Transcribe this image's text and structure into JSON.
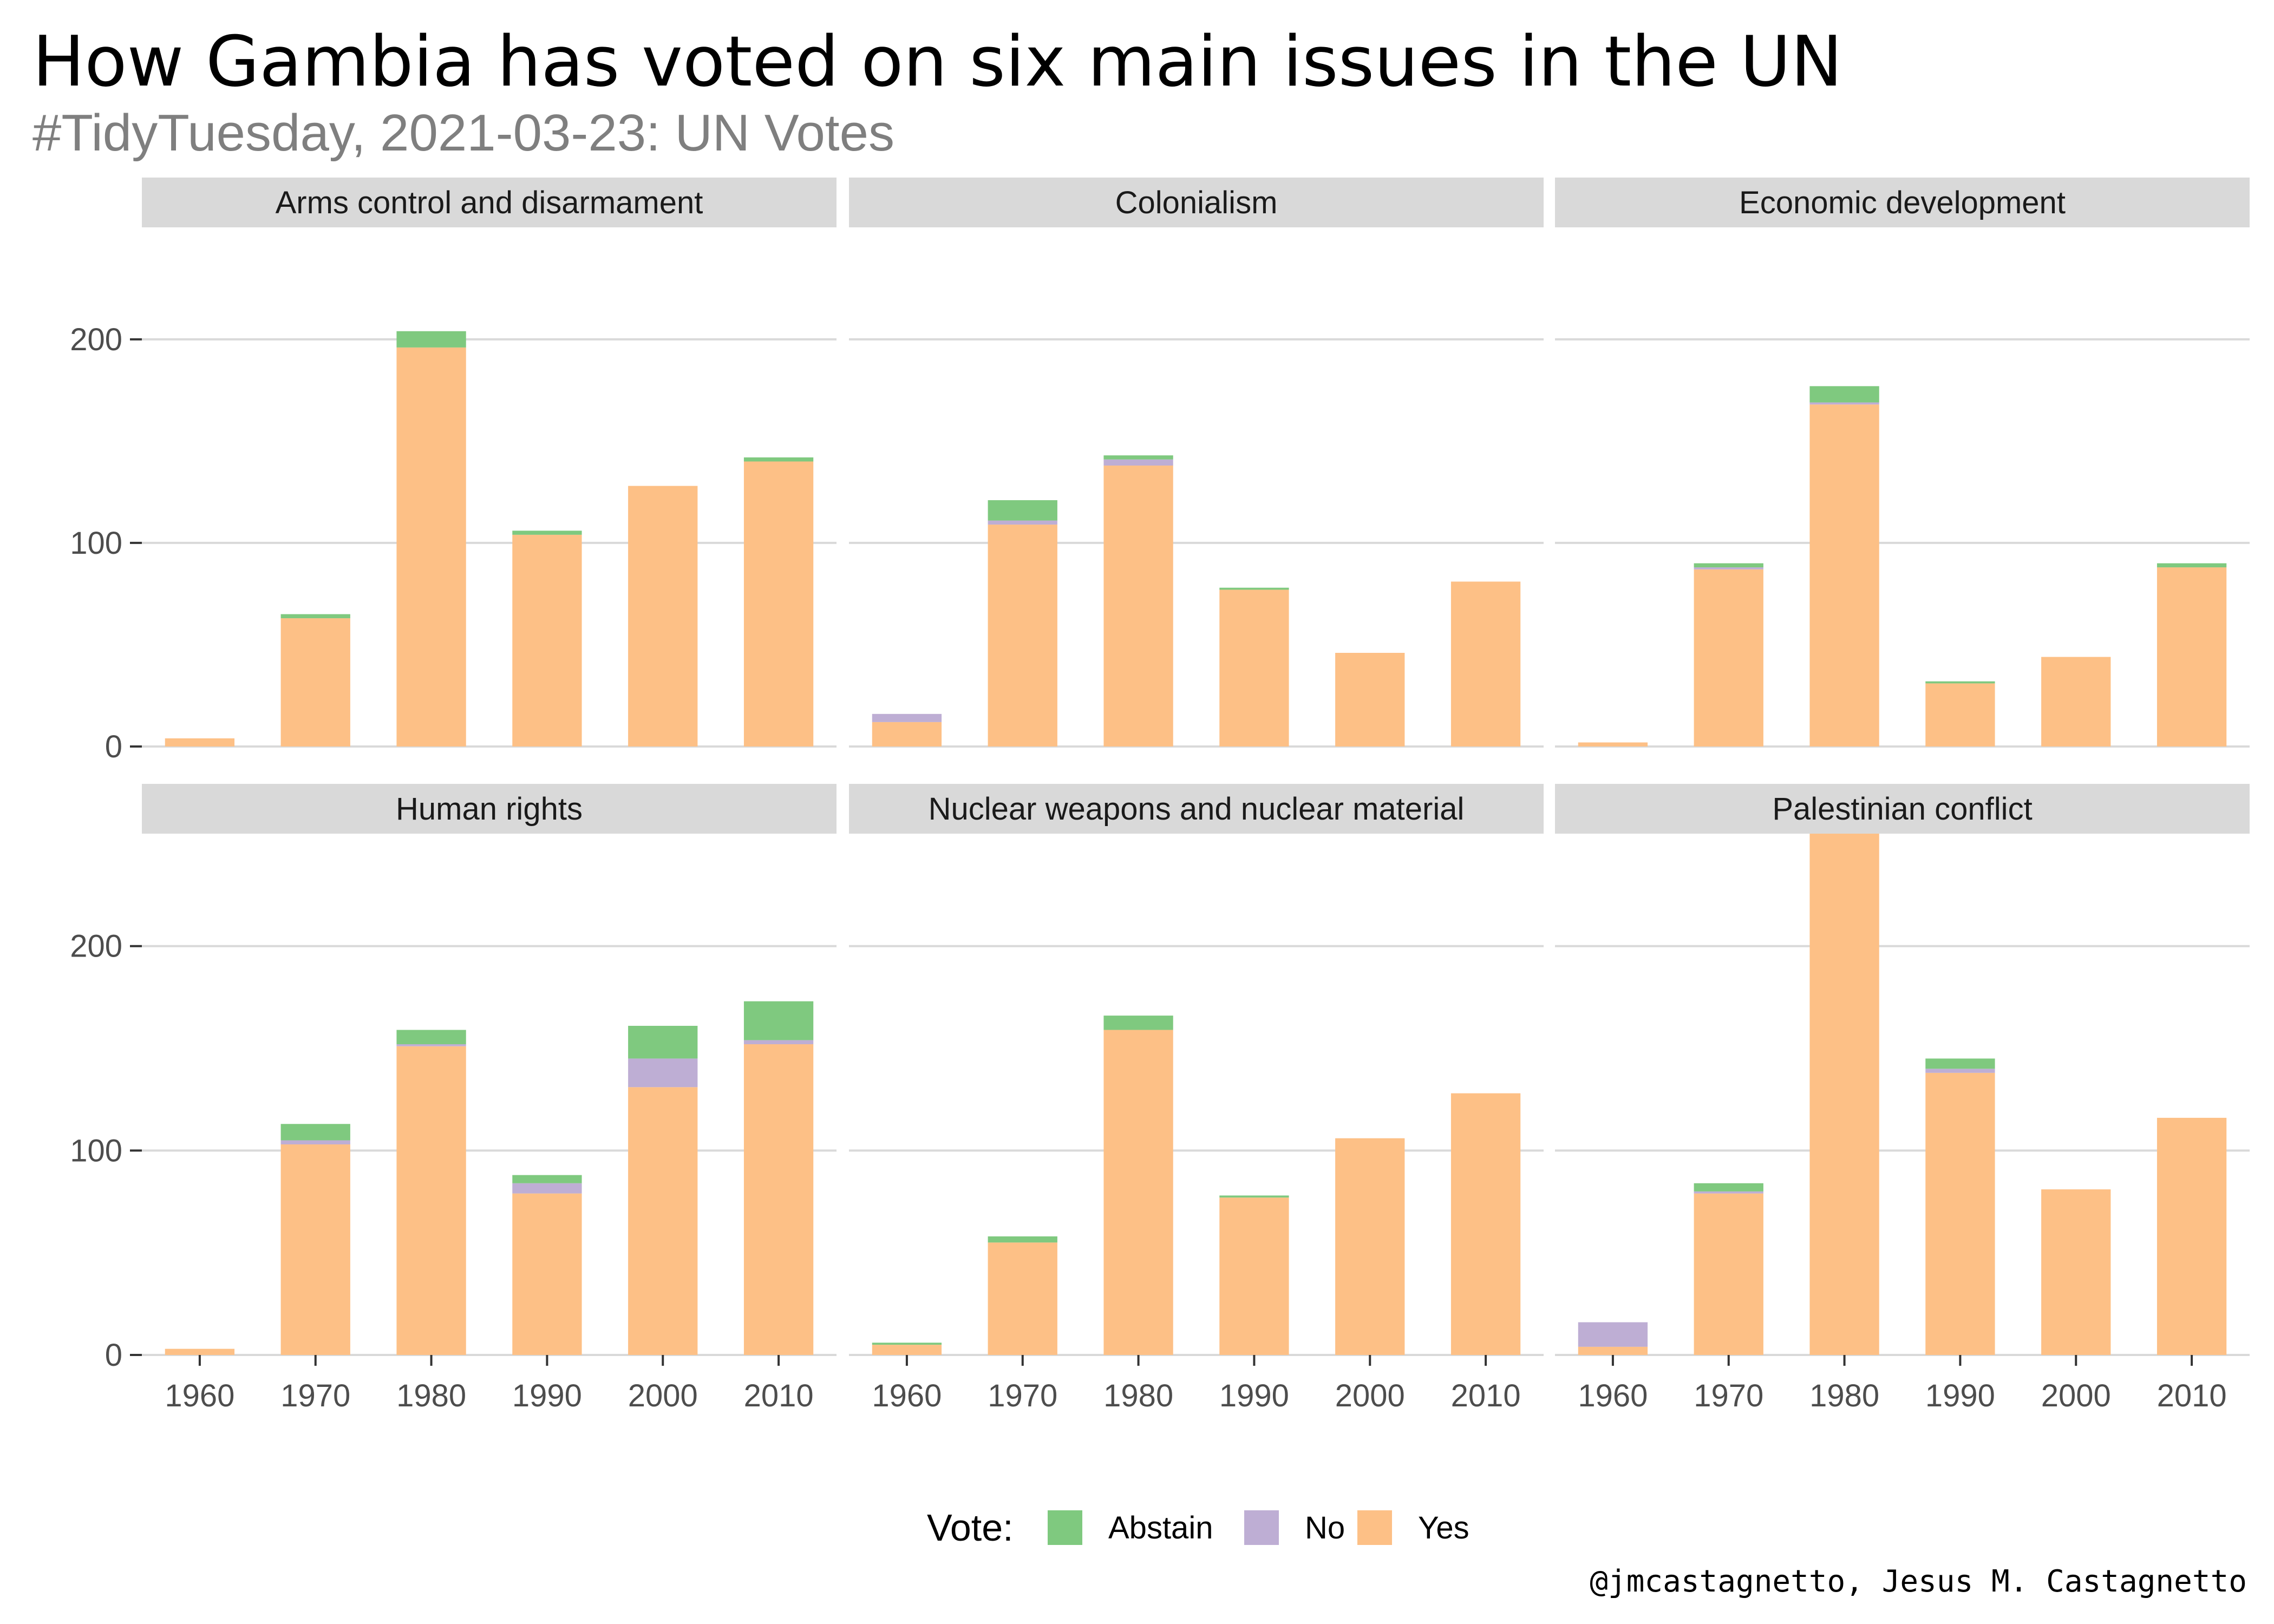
{
  "title": "How Gambia has voted on six main issues in the UN",
  "subtitle": "#TidyTuesday, 2021-03-23: UN Votes",
  "caption": "@jmcastagnetto, Jesus M. Castagnetto",
  "legend": {
    "title": "Vote:",
    "placement": "bottom",
    "items": [
      {
        "label": "Abstain",
        "color": "#7fc97f"
      },
      {
        "label": "No",
        "color": "#beaed4"
      },
      {
        "label": "Yes",
        "color": "#fdc086"
      }
    ]
  },
  "chart_data": {
    "type": "bar",
    "stacked": true,
    "facet_layout": "3 columns x 2 rows",
    "categories": [
      "1960",
      "1970",
      "1980",
      "1990",
      "2000",
      "2010"
    ],
    "ylim": [
      0,
      255
    ],
    "y_ticks": [
      "0",
      "100",
      "200"
    ],
    "grid": true,
    "panels": [
      {
        "name": "Arms control and disarmament",
        "series": [
          {
            "name": "Yes",
            "values": [
              4,
              63,
              196,
              104,
              128,
              140
            ]
          },
          {
            "name": "No",
            "values": [
              0,
              0,
              0,
              0,
              0,
              0
            ]
          },
          {
            "name": "Abstain",
            "values": [
              0,
              2,
              8,
              2,
              0,
              2
            ]
          }
        ]
      },
      {
        "name": "Colonialism",
        "series": [
          {
            "name": "Yes",
            "values": [
              12,
              109,
              138,
              77,
              46,
              81
            ]
          },
          {
            "name": "No",
            "values": [
              4,
              2,
              3,
              0,
              0,
              0
            ]
          },
          {
            "name": "Abstain",
            "values": [
              0,
              10,
              2,
              1,
              0,
              0
            ]
          }
        ]
      },
      {
        "name": "Economic development",
        "series": [
          {
            "name": "Yes",
            "values": [
              2,
              87,
              168,
              31,
              44,
              88
            ]
          },
          {
            "name": "No",
            "values": [
              0,
              1,
              1,
              0,
              0,
              0
            ]
          },
          {
            "name": "Abstain",
            "values": [
              0,
              2,
              8,
              1,
              0,
              2
            ]
          }
        ]
      },
      {
        "name": "Human rights",
        "series": [
          {
            "name": "Yes",
            "values": [
              3,
              103,
              151,
              79,
              131,
              152
            ]
          },
          {
            "name": "No",
            "values": [
              0,
              2,
              1,
              5,
              14,
              2
            ]
          },
          {
            "name": "Abstain",
            "values": [
              0,
              8,
              7,
              4,
              16,
              19
            ]
          }
        ]
      },
      {
        "name": "Nuclear weapons and nuclear material",
        "series": [
          {
            "name": "Yes",
            "values": [
              5,
              55,
              159,
              77,
              106,
              128
            ]
          },
          {
            "name": "No",
            "values": [
              0,
              0,
              0,
              0,
              0,
              0
            ]
          },
          {
            "name": "Abstain",
            "values": [
              1,
              3,
              7,
              1,
              0,
              0
            ]
          }
        ]
      },
      {
        "name": "Palestinian conflict",
        "series": [
          {
            "name": "Yes",
            "values": [
              4,
              79,
              255,
              138,
              81,
              116
            ]
          },
          {
            "name": "No",
            "values": [
              12,
              1,
              0,
              2,
              0,
              0
            ]
          },
          {
            "name": "Abstain",
            "values": [
              0,
              4,
              0,
              5,
              0,
              0
            ]
          }
        ]
      }
    ]
  }
}
